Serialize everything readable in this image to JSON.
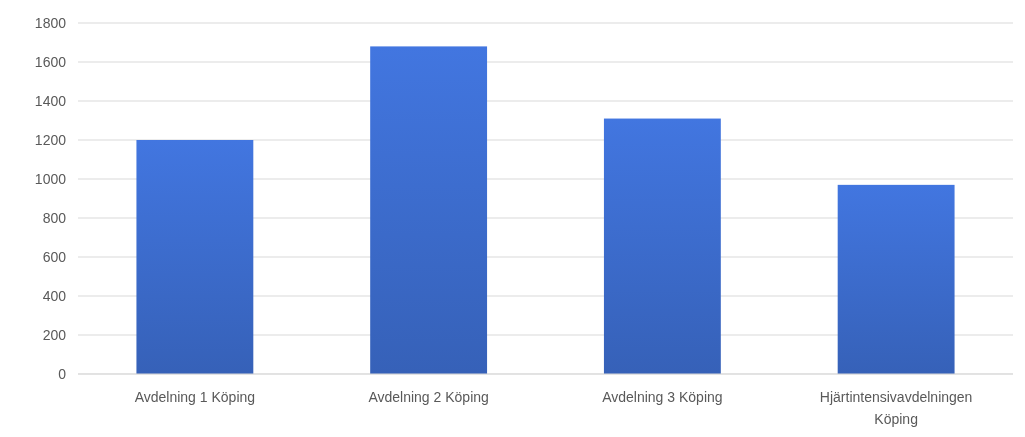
{
  "chart_data": {
    "type": "bar",
    "categories": [
      "Avdelning 1 Köping",
      "Avdelning 2 Köping",
      "Avdelning 3 Köping",
      "Hjärtintensivavdelningen Köping"
    ],
    "values": [
      1200,
      1680,
      1310,
      970
    ],
    "color": "#3a68c6",
    "ylim": [
      0,
      1800
    ],
    "yticks": [
      0,
      200,
      400,
      600,
      800,
      1000,
      1200,
      1400,
      1600,
      1800
    ],
    "grid": "y"
  }
}
